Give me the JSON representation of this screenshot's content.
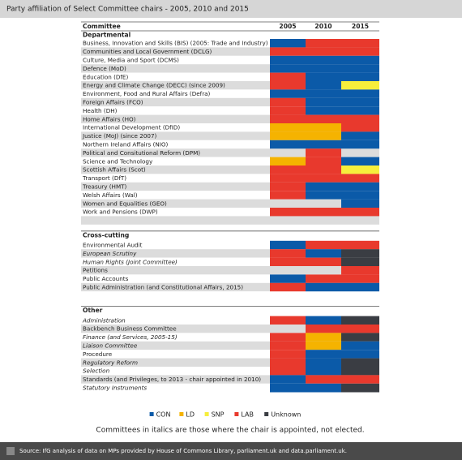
{
  "header": {
    "title": "Party affiliation of Select Committee chairs - 2005, 2010 and 2015"
  },
  "columns": [
    "Committee",
    "2005",
    "2010",
    "2015"
  ],
  "parties": [
    {
      "name": "CON",
      "color": "#0b5aa8"
    },
    {
      "name": "LD",
      "color": "#f5b300"
    },
    {
      "name": "SNP",
      "color": "#f6ee3c"
    },
    {
      "name": "LAB",
      "color": "#e8392d"
    },
    {
      "name": "Unknown",
      "color": "#3a3d43"
    }
  ],
  "sections": [
    {
      "name": "Departmental",
      "rows": [
        {
          "label": "Business, Innovation and Skills (BIS) (2005: Trade and Industry)",
          "italic": false,
          "parties": [
            "CON",
            "LAB",
            "LAB"
          ]
        },
        {
          "label": "Communities and Local Government (DCLG)",
          "italic": false,
          "parties": [
            "LAB",
            "LAB",
            "LAB"
          ]
        },
        {
          "label": "Culture, Media and Sport (DCMS)",
          "italic": false,
          "parties": [
            "CON",
            "CON",
            "CON"
          ]
        },
        {
          "label": "Defence (MoD)",
          "italic": false,
          "parties": [
            "CON",
            "CON",
            "CON"
          ]
        },
        {
          "label": "Education (DfE)",
          "italic": false,
          "parties": [
            "LAB",
            "CON",
            "CON"
          ]
        },
        {
          "label": "Energy and Climate Change (DECC) (since 2009)",
          "italic": false,
          "parties": [
            "LAB",
            "CON",
            "SNP"
          ]
        },
        {
          "label": "Environment, Food and Rural Affairs (Defra)",
          "italic": false,
          "parties": [
            "CON",
            "CON",
            "CON"
          ]
        },
        {
          "label": "Foreign Affairs (FCO)",
          "italic": false,
          "parties": [
            "LAB",
            "CON",
            "CON"
          ]
        },
        {
          "label": "Health (DH)",
          "italic": false,
          "parties": [
            "LAB",
            "CON",
            "CON"
          ]
        },
        {
          "label": "Home Affairs (HO)",
          "italic": false,
          "parties": [
            "LAB",
            "LAB",
            "LAB"
          ]
        },
        {
          "label": "International Development (DfID)",
          "italic": false,
          "parties": [
            "LD",
            "LD",
            "LAB"
          ]
        },
        {
          "label": "Justice (MoJ) (since 2007)",
          "italic": false,
          "parties": [
            "LD",
            "LD",
            "CON"
          ]
        },
        {
          "label": "Northern Ireland Affairs (NIO)",
          "italic": false,
          "parties": [
            "CON",
            "CON",
            "CON"
          ]
        },
        {
          "label": "Political and Consitutional Reform (DPM)",
          "italic": false,
          "parties": [
            null,
            "LAB",
            null
          ]
        },
        {
          "label": "Science and Technology",
          "italic": false,
          "parties": [
            "LD",
            "LAB",
            "CON"
          ]
        },
        {
          "label": "Scottish Affairs (Scot)",
          "italic": false,
          "parties": [
            "LAB",
            "LAB",
            "SNP"
          ]
        },
        {
          "label": "Transport (DfT)",
          "italic": false,
          "parties": [
            "LAB",
            "LAB",
            "LAB"
          ]
        },
        {
          "label": "Treasury (HMT)",
          "italic": false,
          "parties": [
            "LAB",
            "CON",
            "CON"
          ]
        },
        {
          "label": "Welsh Affairs (Wal)",
          "italic": false,
          "parties": [
            "LAB",
            "CON",
            "CON"
          ]
        },
        {
          "label": "Women and Equalities (GEO)",
          "italic": false,
          "parties": [
            null,
            null,
            "CON"
          ]
        },
        {
          "label": "Work and Pensions (DWP)",
          "italic": false,
          "parties": [
            "LAB",
            "LAB",
            "LAB"
          ]
        }
      ]
    },
    {
      "name": "Cross-cutting",
      "rows": [
        {
          "label": "Environmental Audit",
          "italic": false,
          "parties": [
            "CON",
            "LAB",
            "LAB"
          ]
        },
        {
          "label": "European Scrutiny",
          "italic": true,
          "parties": [
            "LAB",
            "CON",
            "Unknown"
          ]
        },
        {
          "label": "Human Rights (Joint Committee)",
          "italic": true,
          "parties": [
            "LAB",
            "LAB",
            "Unknown"
          ]
        },
        {
          "label": "Petitions",
          "italic": false,
          "parties": [
            null,
            null,
            "LAB"
          ]
        },
        {
          "label": "Public Accounts",
          "italic": false,
          "parties": [
            "CON",
            "LAB",
            "LAB"
          ]
        },
        {
          "label": "Public Administration (and Constitutional Affairs, 2015)",
          "italic": false,
          "parties": [
            "LAB",
            "CON",
            "CON"
          ]
        }
      ]
    },
    {
      "name": "Other",
      "rows": [
        {
          "label": "Administration",
          "italic": true,
          "parties": [
            "LAB",
            "CON",
            "Unknown"
          ]
        },
        {
          "label": "Backbench Business Committee",
          "italic": false,
          "parties": [
            null,
            "LAB",
            "LAB"
          ]
        },
        {
          "label": "Finance (and Services, 2005-15)",
          "italic": true,
          "parties": [
            "LAB",
            "LD",
            "Unknown"
          ]
        },
        {
          "label": "Liaison Committee",
          "italic": true,
          "parties": [
            "LAB",
            "LD",
            "CON"
          ]
        },
        {
          "label": "Procedure",
          "italic": false,
          "parties": [
            "LAB",
            "CON",
            "CON"
          ]
        },
        {
          "label": "Regulatory Reform",
          "italic": true,
          "parties": [
            "LAB",
            "CON",
            "Unknown"
          ]
        },
        {
          "label": "Selection",
          "italic": true,
          "parties": [
            "LAB",
            "CON",
            "Unknown"
          ]
        },
        {
          "label": "Standards (and Privileges, to 2013 - chair appointed in 2010)",
          "italic": false,
          "parties": [
            "CON",
            "LAB",
            "LAB"
          ]
        },
        {
          "label": "Statutory Instruments",
          "italic": true,
          "parties": [
            "CON",
            "CON",
            "Unknown"
          ]
        }
      ]
    }
  ],
  "note": "Committees in italics are those where the chair is appointed, not elected.",
  "source": "Source: IfG analysis of data on MPs provided by House of Commons Library, parliament.uk and data.parliament.uk."
}
